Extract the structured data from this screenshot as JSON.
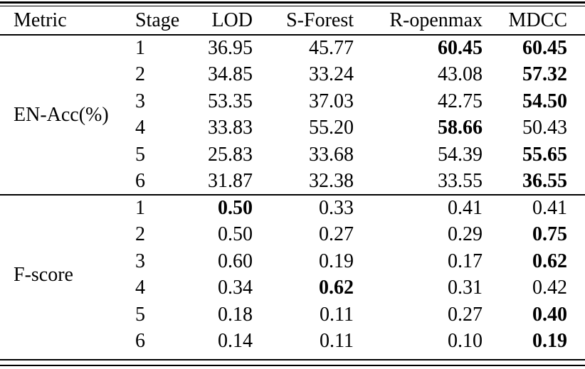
{
  "colors": {
    "text": "#000000",
    "background": "#ffffff",
    "rule": "#000000"
  },
  "table": {
    "columns": [
      "Metric",
      "Stage",
      "LOD",
      "S-Forest",
      "R-openmax",
      "MDCC"
    ],
    "sections": [
      {
        "metric": "EN-Acc(%)",
        "rows": [
          {
            "stage": "1",
            "cells": [
              {
                "v": "36.95",
                "bold": false
              },
              {
                "v": "45.77",
                "bold": false
              },
              {
                "v": "60.45",
                "bold": true
              },
              {
                "v": "60.45",
                "bold": true
              }
            ]
          },
          {
            "stage": "2",
            "cells": [
              {
                "v": "34.85",
                "bold": false
              },
              {
                "v": "33.24",
                "bold": false
              },
              {
                "v": "43.08",
                "bold": false
              },
              {
                "v": "57.32",
                "bold": true
              }
            ]
          },
          {
            "stage": "3",
            "cells": [
              {
                "v": "53.35",
                "bold": false
              },
              {
                "v": "37.03",
                "bold": false
              },
              {
                "v": "42.75",
                "bold": false
              },
              {
                "v": "54.50",
                "bold": true
              }
            ]
          },
          {
            "stage": "4",
            "cells": [
              {
                "v": "33.83",
                "bold": false
              },
              {
                "v": "55.20",
                "bold": false
              },
              {
                "v": "58.66",
                "bold": true
              },
              {
                "v": "50.43",
                "bold": false
              }
            ]
          },
          {
            "stage": "5",
            "cells": [
              {
                "v": "25.83",
                "bold": false
              },
              {
                "v": "33.68",
                "bold": false
              },
              {
                "v": "54.39",
                "bold": false
              },
              {
                "v": "55.65",
                "bold": true
              }
            ]
          },
          {
            "stage": "6",
            "cells": [
              {
                "v": "31.87",
                "bold": false
              },
              {
                "v": "32.38",
                "bold": false
              },
              {
                "v": "33.55",
                "bold": false
              },
              {
                "v": "36.55",
                "bold": true
              }
            ]
          }
        ]
      },
      {
        "metric": "F-score",
        "rows": [
          {
            "stage": "1",
            "cells": [
              {
                "v": "0.50",
                "bold": true
              },
              {
                "v": "0.33",
                "bold": false
              },
              {
                "v": "0.41",
                "bold": false
              },
              {
                "v": "0.41",
                "bold": false
              }
            ]
          },
          {
            "stage": "2",
            "cells": [
              {
                "v": "0.50",
                "bold": false
              },
              {
                "v": "0.27",
                "bold": false
              },
              {
                "v": "0.29",
                "bold": false
              },
              {
                "v": "0.75",
                "bold": true
              }
            ]
          },
          {
            "stage": "3",
            "cells": [
              {
                "v": "0.60",
                "bold": false
              },
              {
                "v": "0.19",
                "bold": false
              },
              {
                "v": "0.17",
                "bold": false
              },
              {
                "v": "0.62",
                "bold": true
              }
            ]
          },
          {
            "stage": "4",
            "cells": [
              {
                "v": "0.34",
                "bold": false
              },
              {
                "v": "0.62",
                "bold": true
              },
              {
                "v": "0.31",
                "bold": false
              },
              {
                "v": "0.42",
                "bold": false
              }
            ]
          },
          {
            "stage": "5",
            "cells": [
              {
                "v": "0.18",
                "bold": false
              },
              {
                "v": "0.11",
                "bold": false
              },
              {
                "v": "0.27",
                "bold": false
              },
              {
                "v": "0.40",
                "bold": true
              }
            ]
          },
          {
            "stage": "6",
            "cells": [
              {
                "v": "0.14",
                "bold": false
              },
              {
                "v": "0.11",
                "bold": false
              },
              {
                "v": "0.10",
                "bold": false
              },
              {
                "v": "0.19",
                "bold": true
              }
            ]
          }
        ]
      }
    ]
  }
}
